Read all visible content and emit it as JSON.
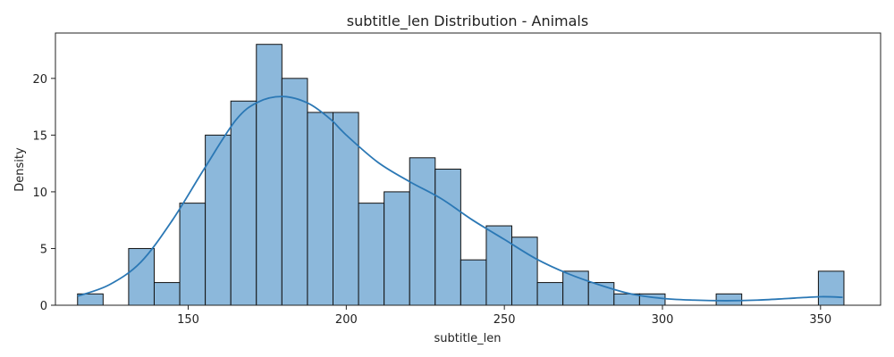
{
  "chart_data": {
    "type": "bar",
    "title": "subtitle_len Distribution - Animals",
    "xlabel": "subtitle_len",
    "ylabel": "Density",
    "xlim": [
      108,
      369
    ],
    "ylim": [
      0,
      24
    ],
    "xticks": [
      150,
      200,
      250,
      300,
      350
    ],
    "yticks": [
      0,
      5,
      10,
      15,
      20
    ],
    "bin_start": 115,
    "bin_width": 8.08,
    "counts": [
      1,
      0,
      5,
      2,
      9,
      15,
      18,
      23,
      20,
      17,
      17,
      9,
      10,
      13,
      12,
      4,
      7,
      6,
      2,
      3,
      2,
      1,
      1,
      0,
      0,
      1,
      0,
      0,
      0,
      3
    ],
    "bar_color": "#8cb8db",
    "edge_color": "#111111",
    "kde": {
      "color": "#2b78b5",
      "x": [
        115,
        125,
        135,
        145,
        155,
        165,
        172,
        180,
        188,
        195,
        200,
        210,
        220,
        230,
        240,
        250,
        260,
        270,
        280,
        290,
        300,
        310,
        320,
        330,
        340,
        350,
        357
      ],
      "y": [
        0.8,
        1.8,
        3.8,
        7.5,
        12.0,
        16.3,
        17.9,
        18.4,
        17.8,
        16.4,
        15.0,
        12.6,
        10.9,
        9.4,
        7.5,
        5.8,
        4.1,
        2.8,
        1.8,
        1.0,
        0.6,
        0.45,
        0.4,
        0.45,
        0.6,
        0.75,
        0.7
      ]
    }
  }
}
